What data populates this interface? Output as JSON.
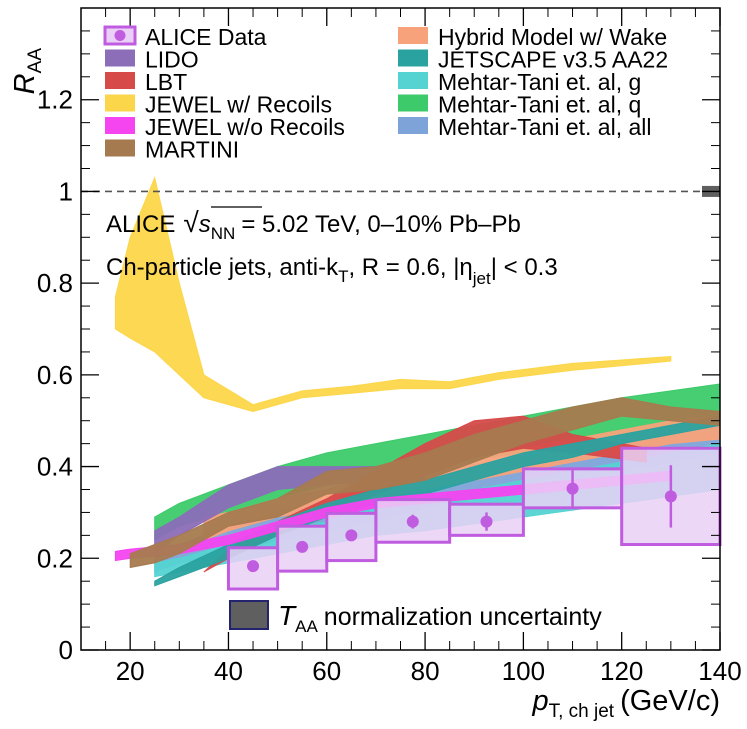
{
  "chart_data": {
    "type": "area",
    "ylabel": "R",
    "ylabel_sub": "AA",
    "xlabel": "p",
    "xlabel_sub": "T, ch jet",
    "xlabel_unit": "(GeV/c)",
    "xlim": [
      10,
      140
    ],
    "ylim": [
      0,
      1.4
    ],
    "x_ticks": [
      20,
      40,
      60,
      80,
      100,
      120,
      140
    ],
    "y_ticks": [
      0,
      0.2,
      0.4,
      0.6,
      0.8,
      1,
      1.2
    ],
    "y_tick_labels": [
      "0",
      "0.2",
      "0.4",
      "0.6",
      "0.8",
      "1",
      "1.2"
    ],
    "reference_line": 1,
    "annotations": {
      "line1_prefix": "ALICE",
      "line1_sqrt": "s",
      "line1_sub": "NN",
      "line1_rest": "= 5.02 TeV, 0–10% Pb–Pb",
      "line2": "Ch-particle jets, anti-k",
      "line2_sub": "T",
      "line2_rest": ", R = 0.6, |η",
      "line2_sub2": "jet",
      "line2_end": "| < 0.3"
    },
    "norm_uncertainty": {
      "label_t": "T",
      "label_sub": "AA",
      "label_rest": "normalization uncertainty",
      "color": "#5f5f5f",
      "low": 0.988,
      "high": 1.012
    },
    "data": {
      "name": "ALICE Data",
      "color": "#c05ce0",
      "fill": "#ead0f6",
      "points": [
        {
          "x": 45,
          "xlo": 40,
          "xhi": 50,
          "y": 0.183,
          "slo": 0.133,
          "shi": 0.223,
          "stat": 0.008
        },
        {
          "x": 55,
          "xlo": 50,
          "xhi": 60,
          "y": 0.225,
          "slo": 0.172,
          "shi": 0.27,
          "stat": 0.008
        },
        {
          "x": 65,
          "xlo": 60,
          "xhi": 70,
          "y": 0.25,
          "slo": 0.195,
          "shi": 0.298,
          "stat": 0.008
        },
        {
          "x": 77.5,
          "xlo": 70,
          "xhi": 85,
          "y": 0.28,
          "slo": 0.235,
          "shi": 0.328,
          "stat": 0.015
        },
        {
          "x": 92.5,
          "xlo": 85,
          "xhi": 100,
          "y": 0.28,
          "slo": 0.25,
          "shi": 0.318,
          "stat": 0.02
        },
        {
          "x": 110,
          "xlo": 100,
          "xhi": 120,
          "y": 0.352,
          "slo": 0.31,
          "shi": 0.395,
          "stat": 0.04
        },
        {
          "x": 130,
          "xlo": 120,
          "xhi": 140,
          "y": 0.335,
          "slo": 0.23,
          "shi": 0.44,
          "stat": 0.068
        }
      ]
    },
    "series": [
      {
        "name": "Mehtar-Tani et. al, q",
        "color": "#3dca6a",
        "x": [
          25,
          30,
          40,
          50,
          60,
          70,
          80,
          100,
          120,
          140
        ],
        "low": [
          0.24,
          0.27,
          0.3,
          0.33,
          0.36,
          0.38,
          0.4,
          0.43,
          0.45,
          0.48
        ],
        "high": [
          0.29,
          0.32,
          0.36,
          0.4,
          0.43,
          0.45,
          0.47,
          0.51,
          0.55,
          0.58
        ]
      },
      {
        "name": "Mehtar-Tani et. al, all",
        "color": "#7ea3d8",
        "x": [
          25,
          30,
          40,
          50,
          60,
          70,
          80,
          100,
          120,
          140
        ],
        "low": [
          0.17,
          0.19,
          0.21,
          0.24,
          0.26,
          0.28,
          0.31,
          0.35,
          0.39,
          0.43
        ],
        "high": [
          0.21,
          0.23,
          0.27,
          0.3,
          0.33,
          0.36,
          0.39,
          0.42,
          0.46,
          0.5
        ]
      },
      {
        "name": "Mehtar-Tani et. al, g",
        "color": "#55d3d3",
        "x": [
          25,
          30,
          40,
          50,
          60,
          70,
          80,
          100,
          120,
          140
        ],
        "low": [
          0.16,
          0.17,
          0.19,
          0.21,
          0.23,
          0.25,
          0.26,
          0.29,
          0.32,
          0.35
        ],
        "high": [
          0.19,
          0.2,
          0.23,
          0.26,
          0.28,
          0.31,
          0.33,
          0.37,
          0.41,
          0.45
        ]
      },
      {
        "name": "Hybrid Model w/ Wake",
        "color": "#f7a27a",
        "x": [
          35,
          40,
          50,
          60,
          70,
          80,
          90,
          100,
          110,
          120,
          130,
          140
        ],
        "low": [
          0.24,
          0.26,
          0.29,
          0.31,
          0.33,
          0.35,
          0.37,
          0.39,
          0.41,
          0.43,
          0.45,
          0.46
        ],
        "high": [
          0.29,
          0.3,
          0.33,
          0.35,
          0.38,
          0.4,
          0.42,
          0.44,
          0.46,
          0.48,
          0.5,
          0.51
        ]
      },
      {
        "name": "LIDO",
        "color": "#8b6db8",
        "x": [
          25,
          30,
          40,
          50,
          60,
          70,
          80
        ],
        "low": [
          0.21,
          0.25,
          0.31,
          0.35,
          0.36,
          0.37,
          0.37
        ],
        "high": [
          0.26,
          0.29,
          0.36,
          0.4,
          0.4,
          0.4,
          0.4
        ]
      },
      {
        "name": "LBT",
        "color": "#d64a4a",
        "x": [
          35,
          40,
          50,
          60,
          70,
          80,
          90,
          100,
          110,
          125
        ],
        "low": [
          0.17,
          0.2,
          0.25,
          0.3,
          0.34,
          0.38,
          0.42,
          0.44,
          0.43,
          0.41
        ],
        "high": [
          0.17,
          0.22,
          0.28,
          0.33,
          0.39,
          0.45,
          0.5,
          0.51,
          0.47,
          0.44
        ]
      },
      {
        "name": "JETSCAPE v3.5 AA22",
        "color": "#2aa2a0",
        "x": [
          25,
          30,
          40,
          50,
          60,
          70,
          80,
          90,
          100,
          110,
          120,
          130,
          140
        ],
        "low": [
          0.14,
          0.16,
          0.2,
          0.25,
          0.29,
          0.32,
          0.34,
          0.37,
          0.4,
          0.42,
          0.45,
          0.47,
          0.49
        ],
        "high": [
          0.15,
          0.18,
          0.23,
          0.28,
          0.32,
          0.35,
          0.37,
          0.4,
          0.43,
          0.45,
          0.47,
          0.49,
          0.51
        ]
      },
      {
        "name": "JEWEL w/o Recoils",
        "color": "#f445f0",
        "x": [
          17,
          20,
          30,
          40,
          50,
          60,
          70,
          80,
          90,
          100,
          110,
          120,
          130
        ],
        "low": [
          0.195,
          0.2,
          0.21,
          0.23,
          0.26,
          0.29,
          0.31,
          0.32,
          0.33,
          0.34,
          0.35,
          0.36,
          0.37
        ],
        "high": [
          0.215,
          0.22,
          0.23,
          0.25,
          0.28,
          0.31,
          0.33,
          0.34,
          0.35,
          0.36,
          0.37,
          0.38,
          0.39
        ]
      },
      {
        "name": "MARTINI",
        "color": "#a67a4f",
        "x": [
          20,
          25,
          30,
          40,
          50,
          60,
          70,
          80,
          90,
          100,
          110,
          120,
          130,
          140
        ],
        "low": [
          0.18,
          0.19,
          0.21,
          0.27,
          0.29,
          0.34,
          0.35,
          0.37,
          0.41,
          0.45,
          0.48,
          0.51,
          0.5,
          0.49
        ],
        "high": [
          0.21,
          0.23,
          0.25,
          0.3,
          0.33,
          0.39,
          0.4,
          0.43,
          0.47,
          0.5,
          0.53,
          0.55,
          0.53,
          0.52
        ]
      },
      {
        "name": "JEWEL w/ Recoils",
        "color": "#fcd64a",
        "x": [
          17,
          20,
          25,
          30,
          35,
          45,
          55,
          65,
          75,
          85,
          95,
          110,
          130
        ],
        "low": [
          0.7,
          0.68,
          0.65,
          0.6,
          0.55,
          0.52,
          0.55,
          0.56,
          0.57,
          0.57,
          0.59,
          0.61,
          0.63
        ],
        "high": [
          0.77,
          0.9,
          1.03,
          0.8,
          0.6,
          0.535,
          0.565,
          0.575,
          0.59,
          0.585,
          0.605,
          0.625,
          0.64
        ]
      }
    ],
    "legend": {
      "left": [
        "ALICE Data",
        "LIDO",
        "LBT",
        "JEWEL w/ Recoils",
        "JEWEL w/o Recoils",
        "MARTINI"
      ],
      "right": [
        "Hybrid Model w/ Wake",
        "JETSCAPE v3.5 AA22",
        "Mehtar-Tani et. al, g",
        "Mehtar-Tani et. al, q",
        "Mehtar-Tani et. al, all"
      ]
    }
  }
}
